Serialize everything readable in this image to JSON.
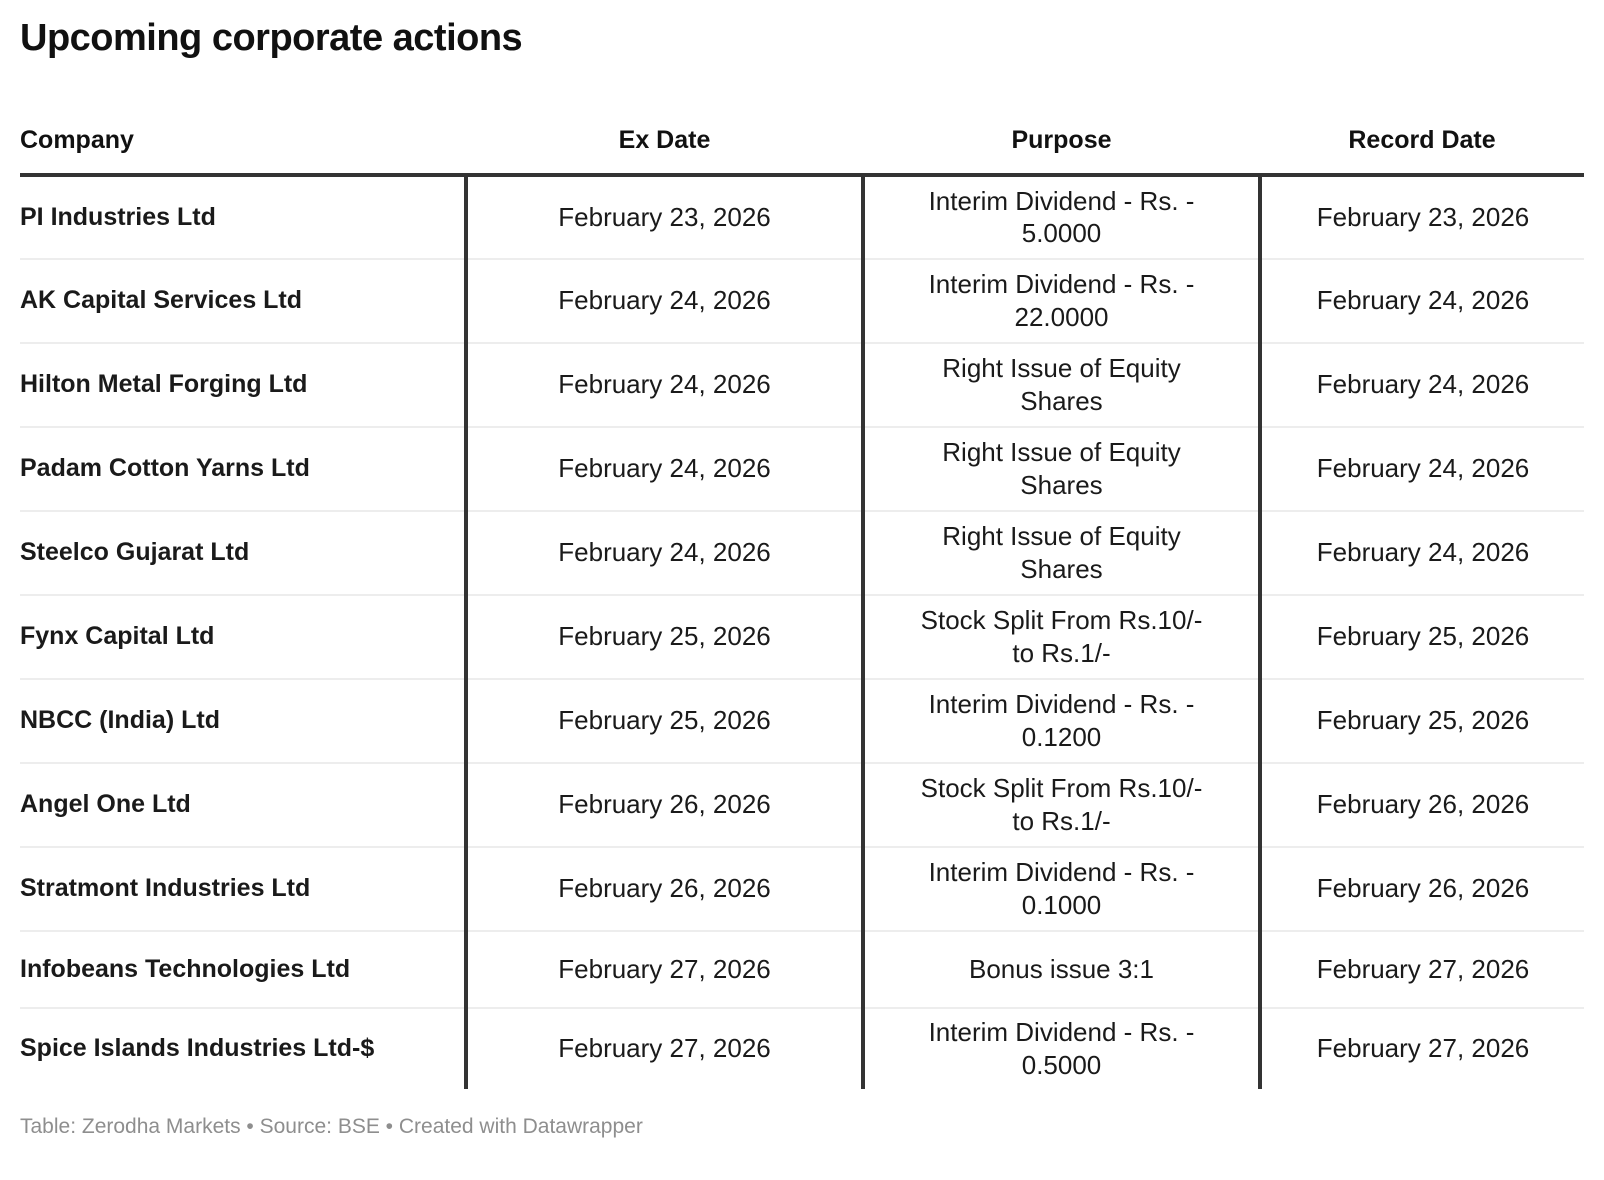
{
  "title": "Upcoming corporate actions",
  "chart_data": {
    "type": "table",
    "title": "Upcoming corporate actions",
    "columns": [
      "Company",
      "Ex Date",
      "Purpose",
      "Record Date"
    ],
    "rows": [
      {
        "company": "PI Industries Ltd",
        "ex_date": "February 23, 2026",
        "purpose": "Interim Dividend - Rs. - 5.0000",
        "record_date": "February 23, 2026"
      },
      {
        "company": "AK Capital Services Ltd",
        "ex_date": "February 24, 2026",
        "purpose": "Interim Dividend - Rs. - 22.0000",
        "record_date": "February 24, 2026"
      },
      {
        "company": "Hilton Metal Forging Ltd",
        "ex_date": "February 24, 2026",
        "purpose": "Right Issue of Equity Shares",
        "record_date": "February 24, 2026"
      },
      {
        "company": "Padam Cotton Yarns Ltd",
        "ex_date": "February 24, 2026",
        "purpose": "Right Issue of Equity Shares",
        "record_date": "February 24, 2026"
      },
      {
        "company": "Steelco Gujarat Ltd",
        "ex_date": "February 24, 2026",
        "purpose": "Right Issue of Equity Shares",
        "record_date": "February 24, 2026"
      },
      {
        "company": "Fynx Capital Ltd",
        "ex_date": "February 25, 2026",
        "purpose": "Stock Split From Rs.10/- to Rs.1/-",
        "record_date": "February 25, 2026"
      },
      {
        "company": "NBCC (India) Ltd",
        "ex_date": "February 25, 2026",
        "purpose": "Interim Dividend - Rs. - 0.1200",
        "record_date": "February 25, 2026"
      },
      {
        "company": "Angel One Ltd",
        "ex_date": "February 26, 2026",
        "purpose": "Stock Split From Rs.10/- to Rs.1/-",
        "record_date": "February 26, 2026"
      },
      {
        "company": "Stratmont Industries Ltd",
        "ex_date": "February 26, 2026",
        "purpose": "Interim Dividend - Rs. - 0.1000",
        "record_date": "February 26, 2026"
      },
      {
        "company": "Infobeans Technologies Ltd",
        "ex_date": "February 27, 2026",
        "purpose": "Bonus issue 3:1",
        "record_date": "February 27, 2026"
      },
      {
        "company": "Spice Islands Industries Ltd-$",
        "ex_date": "February 27, 2026",
        "purpose": "Interim Dividend - Rs. - 0.5000",
        "record_date": "February 27, 2026"
      }
    ],
    "layout_hints": {
      "grid": "horizontal separators + vertical column rules in body",
      "header_align": "Company left, others center"
    }
  },
  "footer": {
    "attribution": "Table: Zerodha Markets • Source: BSE • Created with Datawrapper"
  },
  "colors": {
    "text": "#1a1a1a",
    "rule": "#333333",
    "separator": "#ededed",
    "footer_text": "#8e8e8e",
    "background": "#ffffff"
  }
}
